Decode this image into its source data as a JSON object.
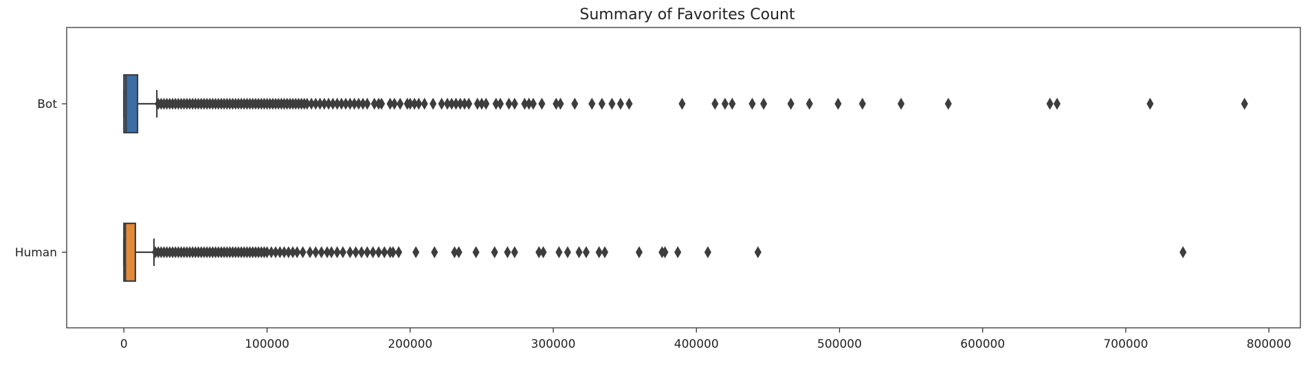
{
  "chart_data": {
    "type": "box",
    "orientation": "horizontal",
    "title": "Summary of Favorites Count",
    "xlabel": "",
    "ylabel": "",
    "xlim": [
      -40000,
      822000
    ],
    "xticks": [
      0,
      100000,
      200000,
      300000,
      400000,
      500000,
      600000,
      700000,
      800000
    ],
    "grid": false,
    "legend": "none",
    "categories": [
      "Bot",
      "Human"
    ],
    "series": [
      {
        "category": "Bot",
        "color": "#3a6ea5",
        "whisker_low": 0,
        "q1": 0,
        "median": 1500,
        "q3": 9500,
        "whisker_high": 23000,
        "outliers": [
          24000,
          26000,
          28000,
          30000,
          32000,
          34000,
          36000,
          38000,
          40000,
          42000,
          44000,
          46000,
          48000,
          50000,
          52000,
          54000,
          56000,
          58000,
          60000,
          62000,
          64000,
          66000,
          68000,
          70000,
          72000,
          74000,
          76000,
          78000,
          80000,
          82000,
          84000,
          86000,
          88000,
          90000,
          92000,
          94000,
          96000,
          98000,
          100000,
          102000,
          104000,
          106000,
          108000,
          110000,
          112000,
          114000,
          116000,
          118000,
          120000,
          122000,
          124000,
          126000,
          128000,
          131000,
          134000,
          137000,
          140000,
          143000,
          146000,
          149000,
          152000,
          155000,
          158000,
          161000,
          164000,
          167000,
          170000,
          175000,
          178000,
          180000,
          186000,
          189000,
          193000,
          198000,
          200000,
          203000,
          206000,
          210000,
          216000,
          222000,
          226000,
          229000,
          232000,
          235000,
          238000,
          241000,
          247000,
          250000,
          253000,
          260000,
          263000,
          269000,
          273000,
          280000,
          283000,
          286000,
          292000,
          302000,
          305000,
          315000,
          327000,
          334000,
          341000,
          347000,
          353000,
          390000,
          413000,
          420000,
          425000,
          439000,
          447000,
          466000,
          479000,
          499000,
          516000,
          543000,
          576000,
          647000,
          652000,
          717000,
          783000
        ]
      },
      {
        "category": "Human",
        "color": "#e08a3a",
        "whisker_low": 0,
        "q1": 0,
        "median": 1000,
        "q3": 8000,
        "whisker_high": 21000,
        "outliers": [
          22000,
          24000,
          26000,
          28000,
          30000,
          32000,
          34000,
          36000,
          38000,
          40000,
          42000,
          44000,
          46000,
          48000,
          50000,
          52000,
          54000,
          56000,
          58000,
          60000,
          62000,
          64000,
          66000,
          68000,
          70000,
          72000,
          74000,
          76000,
          78000,
          80000,
          82000,
          84000,
          86000,
          88000,
          90000,
          92000,
          94000,
          96000,
          98000,
          100000,
          103000,
          106000,
          109000,
          112000,
          115000,
          118000,
          121000,
          125000,
          130000,
          134000,
          138000,
          142000,
          145000,
          149000,
          153000,
          158000,
          162000,
          166000,
          170000,
          174000,
          178000,
          182000,
          186000,
          188000,
          192000,
          204000,
          217000,
          231000,
          234000,
          246000,
          259000,
          268000,
          273000,
          290000,
          293000,
          304000,
          310000,
          318000,
          323000,
          332000,
          336000,
          360000,
          376000,
          378000,
          387000,
          408000,
          443000,
          740000
        ]
      }
    ]
  }
}
